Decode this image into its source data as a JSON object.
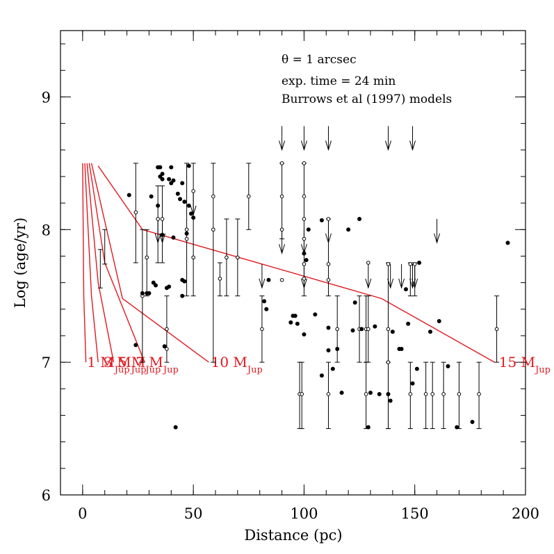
{
  "chart_data": {
    "type": "scatter",
    "xlabel": "Distance (pc)",
    "ylabel": "Log (age/yr)",
    "xlim": [
      -10,
      200
    ],
    "ylim": [
      6,
      9.5
    ],
    "x_ticks": [
      0,
      50,
      100,
      150,
      200
    ],
    "y_ticks": [
      6,
      7,
      8,
      9
    ],
    "x_minor_step": 10,
    "y_minor_step": 0.2,
    "annotations": [
      "θ = 1 arcsec",
      "exp. time = 24 min",
      "Burrows et al (1997) models"
    ],
    "colors": {
      "models": "#e0191f",
      "points": "#000000"
    },
    "filled_points": [
      [
        21,
        8.26
      ],
      [
        24,
        7.13
      ],
      [
        27,
        7.52
      ],
      [
        29,
        7.52
      ],
      [
        30,
        7.52
      ],
      [
        31,
        8.25
      ],
      [
        32,
        7.6
      ],
      [
        33,
        7.58
      ],
      [
        34,
        8.47
      ],
      [
        34,
        8.18
      ],
      [
        35,
        8.47
      ],
      [
        35,
        8.4
      ],
      [
        36,
        8.38
      ],
      [
        36,
        8.42
      ],
      [
        36,
        7.96
      ],
      [
        37,
        7.12
      ],
      [
        38,
        7.56
      ],
      [
        39,
        7.57
      ],
      [
        39,
        8.38
      ],
      [
        40,
        8.47
      ],
      [
        40,
        8.35
      ],
      [
        41,
        8.37
      ],
      [
        41,
        7.94
      ],
      [
        43,
        8.27
      ],
      [
        44,
        8.23
      ],
      [
        45,
        7.62
      ],
      [
        45,
        8.35
      ],
      [
        45,
        7.5
      ],
      [
        46,
        7.61
      ],
      [
        46,
        8.21
      ],
      [
        47,
        7.97
      ],
      [
        48,
        8.48
      ],
      [
        48,
        8.18
      ],
      [
        49,
        8.12
      ],
      [
        50,
        8.09
      ],
      [
        42,
        6.51
      ],
      [
        84,
        7.62
      ],
      [
        82,
        7.46
      ],
      [
        83,
        7.4
      ],
      [
        94,
        7.3
      ],
      [
        95,
        7.35
      ],
      [
        96,
        7.35
      ],
      [
        97,
        7.29
      ],
      [
        100,
        7.82
      ],
      [
        100,
        7.21
      ],
      [
        101,
        7.77
      ],
      [
        102,
        8.0
      ],
      [
        105,
        7.36
      ],
      [
        108,
        6.9
      ],
      [
        108,
        8.07
      ],
      [
        111,
        7.26
      ],
      [
        111,
        7.09
      ],
      [
        113,
        6.95
      ],
      [
        115,
        7.1
      ],
      [
        117,
        6.77
      ],
      [
        120,
        8.0
      ],
      [
        122,
        7.24
      ],
      [
        123,
        7.45
      ],
      [
        125,
        8.08
      ],
      [
        126,
        7.25
      ],
      [
        129,
        6.51
      ],
      [
        130,
        6.77
      ],
      [
        132,
        7.27
      ],
      [
        134,
        6.76
      ],
      [
        138,
        6.76
      ],
      [
        139,
        6.71
      ],
      [
        140,
        7.23
      ],
      [
        143,
        7.1
      ],
      [
        144,
        7.1
      ],
      [
        146,
        7.55
      ],
      [
        147,
        7.29
      ],
      [
        149,
        6.84
      ],
      [
        151,
        6.95
      ],
      [
        152,
        7.75
      ],
      [
        157,
        7.23
      ],
      [
        161,
        7.31
      ],
      [
        165,
        6.97
      ],
      [
        169,
        6.51
      ],
      [
        176,
        6.55
      ],
      [
        192,
        7.9
      ]
    ],
    "open_points": [
      [
        24,
        8.13
      ],
      [
        27,
        7.5
      ],
      [
        29,
        7.79
      ],
      [
        34,
        8.08
      ],
      [
        36,
        8.08
      ],
      [
        38,
        7.25
      ],
      [
        38,
        7.1
      ],
      [
        47,
        8.0
      ],
      [
        47,
        7.93
      ],
      [
        50,
        8.29
      ],
      [
        50,
        7.79
      ],
      [
        59,
        8.25
      ],
      [
        59,
        8.0
      ],
      [
        62,
        7.63
      ],
      [
        65,
        7.79
      ],
      [
        70,
        7.79
      ],
      [
        75,
        8.25
      ],
      [
        81,
        7.25
      ],
      [
        90,
        8.5
      ],
      [
        90,
        8.25
      ],
      [
        90,
        8.0
      ],
      [
        90,
        7.62
      ],
      [
        100,
        8.5
      ],
      [
        100,
        8.25
      ],
      [
        100,
        8.08
      ],
      [
        100,
        7.93
      ],
      [
        100,
        7.74
      ],
      [
        100,
        7.63
      ],
      [
        111,
        8.08
      ],
      [
        111,
        7.74
      ],
      [
        111,
        7.62
      ],
      [
        115,
        7.25
      ],
      [
        125,
        7.25
      ],
      [
        128,
        7.25
      ],
      [
        129,
        7.75
      ],
      [
        129,
        7.25
      ],
      [
        138,
        7.74
      ],
      [
        138,
        7.25
      ],
      [
        138,
        7.0
      ],
      [
        148,
        7.74
      ],
      [
        150,
        7.74
      ],
      [
        187,
        7.25
      ],
      [
        98,
        6.76
      ],
      [
        99,
        6.76
      ],
      [
        111,
        6.76
      ],
      [
        128,
        6.76
      ],
      [
        138,
        6.76
      ],
      [
        148,
        6.76
      ],
      [
        155,
        6.76
      ],
      [
        158,
        6.76
      ],
      [
        163,
        6.76
      ],
      [
        170,
        6.76
      ],
      [
        179,
        6.76
      ]
    ],
    "error_bars": [
      [
        24,
        7.75,
        8.5
      ],
      [
        27,
        7.0,
        8.0
      ],
      [
        29,
        7.5,
        8.0
      ],
      [
        34,
        7.75,
        8.33
      ],
      [
        36,
        7.75,
        8.33
      ],
      [
        38,
        7.0,
        7.5
      ],
      [
        47,
        7.5,
        8.5
      ],
      [
        50,
        7.5,
        8.5
      ],
      [
        59,
        7.0,
        8.5
      ],
      [
        62,
        7.5,
        7.75
      ],
      [
        65,
        7.5,
        8.08
      ],
      [
        70,
        7.5,
        8.08
      ],
      [
        75,
        8.0,
        8.5
      ],
      [
        81,
        7.0,
        7.5
      ],
      [
        90,
        7.93,
        8.5
      ],
      [
        100,
        7.5,
        8.5
      ],
      [
        111,
        7.5,
        8.08
      ],
      [
        115,
        7.0,
        7.5
      ],
      [
        125,
        7.0,
        7.5
      ],
      [
        128,
        7.0,
        7.5
      ],
      [
        129,
        7.0,
        7.5
      ],
      [
        138,
        6.5,
        7.75
      ],
      [
        148,
        7.5,
        7.75
      ],
      [
        150,
        7.5,
        7.75
      ],
      [
        187,
        7.0,
        7.5
      ],
      [
        98,
        6.5,
        7.0
      ],
      [
        99,
        6.5,
        7.0
      ],
      [
        111,
        6.5,
        7.0
      ],
      [
        128,
        6.5,
        7.0
      ],
      [
        138,
        6.5,
        7.0
      ],
      [
        148,
        6.5,
        7.0
      ],
      [
        155,
        6.5,
        7.0
      ],
      [
        158,
        6.5,
        7.0
      ],
      [
        163,
        6.5,
        7.0
      ],
      [
        170,
        6.5,
        7.0
      ],
      [
        179,
        6.5,
        7.0
      ],
      [
        10,
        7.74,
        8.0
      ],
      [
        8,
        7.56,
        7.85
      ]
    ],
    "upper_limits": [
      [
        90,
        8.78
      ],
      [
        100,
        8.78
      ],
      [
        111,
        8.78
      ],
      [
        138,
        8.78
      ],
      [
        149,
        8.78
      ],
      [
        34,
        8.08
      ],
      [
        36,
        8.08
      ],
      [
        50,
        8.29
      ],
      [
        90,
        8.0
      ],
      [
        100,
        8.0
      ],
      [
        111,
        8.08
      ],
      [
        160,
        8.08
      ],
      [
        81,
        7.74
      ],
      [
        100,
        7.74
      ],
      [
        129,
        7.74
      ],
      [
        139,
        7.74
      ],
      [
        144,
        7.74
      ],
      [
        149,
        7.74
      ],
      [
        150,
        7.74
      ]
    ],
    "model_curves": [
      {
        "label": "1 M",
        "sub": "Jup",
        "points": [
          [
            0,
            8.5
          ],
          [
            0.5,
            7.5
          ],
          [
            1.5,
            7.0
          ]
        ]
      },
      {
        "label": "3 M",
        "sub": "Jup",
        "points": [
          [
            1,
            8.5
          ],
          [
            4,
            7.5
          ],
          [
            7,
            7.0
          ]
        ]
      },
      {
        "label": "5 M",
        "sub": "Jup",
        "points": [
          [
            2,
            8.5
          ],
          [
            7,
            7.6
          ],
          [
            14,
            7.0
          ]
        ]
      },
      {
        "label": "7 M",
        "sub": "Jup",
        "points": [
          [
            3,
            8.5
          ],
          [
            10,
            7.75
          ],
          [
            28,
            7.0
          ]
        ]
      },
      {
        "label": "10 M",
        "sub": "Jup",
        "points": [
          [
            4,
            8.5
          ],
          [
            18,
            7.48
          ],
          [
            57,
            7.0
          ]
        ]
      },
      {
        "label": "15 M",
        "sub": "Jup",
        "points": [
          [
            7,
            8.48
          ],
          [
            27,
            8.0
          ],
          [
            135,
            7.48
          ],
          [
            186,
            7.0
          ]
        ]
      }
    ],
    "model_label_positions": [
      [
        2,
        7.0
      ],
      [
        9.5,
        7.0
      ],
      [
        16,
        7.0
      ],
      [
        24,
        7.0
      ],
      [
        58,
        7.0
      ],
      [
        188,
        7.0
      ]
    ]
  }
}
